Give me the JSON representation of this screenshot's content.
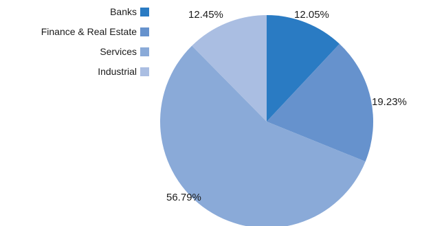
{
  "chart_data": {
    "type": "pie",
    "title": "",
    "start_angle_deg": 0,
    "direction": "clockwise",
    "legend_position": "top-left",
    "slices": [
      {
        "label": "Banks",
        "value": 12.05,
        "display": "12.05%",
        "color": "#2a7bc3"
      },
      {
        "label": "Finance & Real Estate",
        "value": 19.23,
        "display": "19.23%",
        "color": "#6692cd"
      },
      {
        "label": "Services",
        "value": 56.79,
        "display": "56.79%",
        "color": "#8aaad8"
      },
      {
        "label": "Industrial",
        "value": 12.45,
        "display": "12.45%",
        "color": "#aabee2"
      }
    ]
  }
}
